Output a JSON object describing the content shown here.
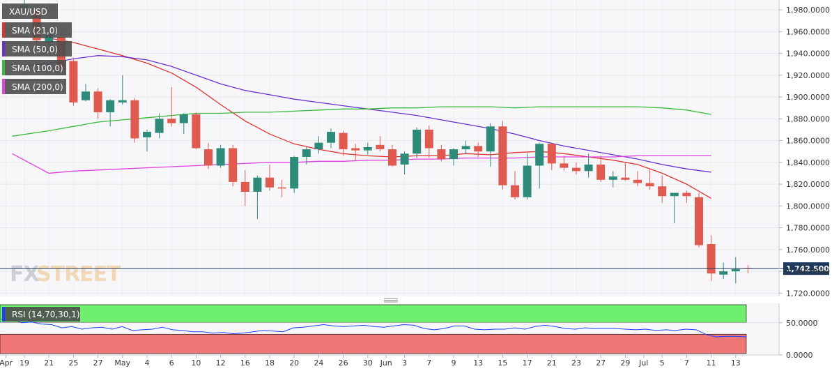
{
  "chart_data": [
    {
      "type": "candlestick",
      "symbol": "XAU/USD",
      "ylim": [
        1717,
        1989
      ],
      "y_ticks": [
        "1,980.0000",
        "1,960.0000",
        "1,940.0000",
        "1,920.0000",
        "1,900.0000",
        "1,880.0000",
        "1,860.0000",
        "1,840.0000",
        "1,820.0000",
        "1,800.0000",
        "1,780.0000",
        "1,760.0000",
        "1,740.0000",
        "1,720.0000"
      ],
      "y_tick_values": [
        1980,
        1960,
        1940,
        1920,
        1900,
        1880,
        1860,
        1840,
        1820,
        1800,
        1780,
        1760,
        1740,
        1720
      ],
      "x_ticks": [
        "Apr",
        "19",
        "21",
        "25",
        "27",
        "May",
        "4",
        "6",
        "10",
        "12",
        "16",
        "18",
        "20",
        "24",
        "26",
        "30",
        "Jun",
        "3",
        "7",
        "9",
        "13",
        "15",
        "17",
        "21",
        "23",
        "27",
        "29",
        "Jul",
        "5",
        "7",
        "11",
        "13"
      ],
      "x_tick_bars": [
        -1.5,
        0,
        2,
        4,
        6,
        8,
        10,
        12,
        14,
        16,
        18,
        20,
        22,
        24,
        26,
        28,
        29.5,
        31,
        33,
        35,
        37,
        39,
        41,
        43,
        45,
        47,
        49,
        50.5,
        52,
        54,
        56,
        58
      ],
      "last_price": "1,742.5000",
      "last_price_value": 1742.5,
      "colors": {
        "up": "#2e8b7a",
        "down": "#e05a4f",
        "sma21": "#e03131",
        "sma50": "#6a2fd1",
        "sma100": "#3cb93c",
        "sma200": "#e040e0",
        "price_line": "#1f3a5f"
      },
      "candles": [
        {
          "o": 1982,
          "h": 1990,
          "l": 1976,
          "c": 1984
        },
        {
          "o": 1979,
          "h": 1981,
          "l": 1948,
          "c": 1952
        },
        {
          "o": 1950,
          "h": 1957,
          "l": 1940,
          "c": 1957
        },
        {
          "o": 1955,
          "h": 1958,
          "l": 1920,
          "c": 1925
        },
        {
          "o": 1933,
          "h": 1936,
          "l": 1892,
          "c": 1895
        },
        {
          "o": 1897,
          "h": 1912,
          "l": 1896,
          "c": 1905
        },
        {
          "o": 1905,
          "h": 1908,
          "l": 1880,
          "c": 1886
        },
        {
          "o": 1886,
          "h": 1898,
          "l": 1873,
          "c": 1897
        },
        {
          "o": 1895,
          "h": 1920,
          "l": 1893,
          "c": 1897
        },
        {
          "o": 1897,
          "h": 1899,
          "l": 1858,
          "c": 1862
        },
        {
          "o": 1863,
          "h": 1870,
          "l": 1850,
          "c": 1868
        },
        {
          "o": 1867,
          "h": 1885,
          "l": 1862,
          "c": 1880
        },
        {
          "o": 1880,
          "h": 1909,
          "l": 1873,
          "c": 1876
        },
        {
          "o": 1876,
          "h": 1885,
          "l": 1866,
          "c": 1884
        },
        {
          "o": 1884,
          "h": 1886,
          "l": 1852,
          "c": 1853
        },
        {
          "o": 1852,
          "h": 1858,
          "l": 1834,
          "c": 1837
        },
        {
          "o": 1837,
          "h": 1856,
          "l": 1835,
          "c": 1853
        },
        {
          "o": 1853,
          "h": 1856,
          "l": 1818,
          "c": 1822
        },
        {
          "o": 1822,
          "h": 1833,
          "l": 1800,
          "c": 1813
        },
        {
          "o": 1813,
          "h": 1828,
          "l": 1788,
          "c": 1826
        },
        {
          "o": 1826,
          "h": 1838,
          "l": 1814,
          "c": 1817
        },
        {
          "o": 1817,
          "h": 1824,
          "l": 1808,
          "c": 1816
        },
        {
          "o": 1816,
          "h": 1846,
          "l": 1812,
          "c": 1845
        },
        {
          "o": 1845,
          "h": 1854,
          "l": 1838,
          "c": 1852
        },
        {
          "o": 1852,
          "h": 1864,
          "l": 1848,
          "c": 1858
        },
        {
          "o": 1858,
          "h": 1871,
          "l": 1853,
          "c": 1868
        },
        {
          "o": 1867,
          "h": 1869,
          "l": 1846,
          "c": 1852
        },
        {
          "o": 1853,
          "h": 1857,
          "l": 1842,
          "c": 1851
        },
        {
          "o": 1851,
          "h": 1858,
          "l": 1847,
          "c": 1854
        },
        {
          "o": 1856,
          "h": 1864,
          "l": 1850,
          "c": 1852
        },
        {
          "o": 1852,
          "h": 1856,
          "l": 1836,
          "c": 1837
        },
        {
          "o": 1838,
          "h": 1850,
          "l": 1829,
          "c": 1848
        },
        {
          "o": 1848,
          "h": 1872,
          "l": 1844,
          "c": 1870
        },
        {
          "o": 1870,
          "h": 1874,
          "l": 1844,
          "c": 1853
        },
        {
          "o": 1852,
          "h": 1856,
          "l": 1841,
          "c": 1843
        },
        {
          "o": 1843,
          "h": 1853,
          "l": 1837,
          "c": 1852
        },
        {
          "o": 1852,
          "h": 1860,
          "l": 1848,
          "c": 1855
        },
        {
          "o": 1855,
          "h": 1858,
          "l": 1845,
          "c": 1850
        },
        {
          "o": 1850,
          "h": 1876,
          "l": 1836,
          "c": 1873
        },
        {
          "o": 1873,
          "h": 1878,
          "l": 1815,
          "c": 1819
        },
        {
          "o": 1819,
          "h": 1832,
          "l": 1806,
          "c": 1808
        },
        {
          "o": 1808,
          "h": 1848,
          "l": 1806,
          "c": 1837
        },
        {
          "o": 1837,
          "h": 1858,
          "l": 1816,
          "c": 1857
        },
        {
          "o": 1857,
          "h": 1858,
          "l": 1833,
          "c": 1839
        },
        {
          "o": 1839,
          "h": 1846,
          "l": 1832,
          "c": 1835
        },
        {
          "o": 1835,
          "h": 1840,
          "l": 1829,
          "c": 1832
        },
        {
          "o": 1832,
          "h": 1848,
          "l": 1826,
          "c": 1838
        },
        {
          "o": 1838,
          "h": 1846,
          "l": 1822,
          "c": 1824
        },
        {
          "o": 1824,
          "h": 1832,
          "l": 1817,
          "c": 1827
        },
        {
          "o": 1826,
          "h": 1840,
          "l": 1823,
          "c": 1824
        },
        {
          "o": 1824,
          "h": 1832,
          "l": 1818,
          "c": 1821
        },
        {
          "o": 1821,
          "h": 1834,
          "l": 1815,
          "c": 1818
        },
        {
          "o": 1818,
          "h": 1828,
          "l": 1803,
          "c": 1809
        },
        {
          "o": 1809,
          "h": 1812,
          "l": 1784,
          "c": 1812
        },
        {
          "o": 1812,
          "h": 1814,
          "l": 1803,
          "c": 1809
        },
        {
          "o": 1808,
          "h": 1812,
          "l": 1762,
          "c": 1764
        },
        {
          "o": 1765,
          "h": 1773,
          "l": 1731,
          "c": 1738
        },
        {
          "o": 1737,
          "h": 1748,
          "l": 1733,
          "c": 1740
        },
        {
          "o": 1740,
          "h": 1753,
          "l": 1729,
          "c": 1742
        },
        {
          "o": 1743,
          "h": 1746,
          "l": 1738,
          "c": 1742.5
        }
      ],
      "series": [
        {
          "name": "SMA (21,0)",
          "points": [
            [
              -1,
              1956
            ],
            [
              2,
              1954
            ],
            [
              4,
              1950
            ],
            [
              6,
              1944
            ],
            [
              8,
              1938
            ],
            [
              10,
              1931
            ],
            [
              12,
              1922
            ],
            [
              14,
              1909
            ],
            [
              16,
              1893
            ],
            [
              18,
              1878
            ],
            [
              20,
              1866
            ],
            [
              22,
              1857
            ],
            [
              24,
              1852
            ],
            [
              26,
              1848
            ],
            [
              28,
              1846
            ],
            [
              30,
              1845
            ],
            [
              32,
              1846
            ],
            [
              34,
              1846
            ],
            [
              36,
              1848
            ],
            [
              38,
              1847
            ],
            [
              40,
              1849
            ],
            [
              42,
              1850
            ],
            [
              44,
              1848
            ],
            [
              46,
              1845
            ],
            [
              48,
              1842
            ],
            [
              50,
              1838
            ],
            [
              52,
              1830
            ],
            [
              54,
              1820
            ],
            [
              56,
              1807
            ]
          ]
        },
        {
          "name": "SMA (50,0)",
          "points": [
            [
              -1,
              1927
            ],
            [
              2,
              1931
            ],
            [
              4,
              1935
            ],
            [
              6,
              1938
            ],
            [
              8,
              1937
            ],
            [
              10,
              1934
            ],
            [
              12,
              1928
            ],
            [
              14,
              1920
            ],
            [
              16,
              1912
            ],
            [
              18,
              1906
            ],
            [
              20,
              1902
            ],
            [
              22,
              1898
            ],
            [
              24,
              1895
            ],
            [
              26,
              1892
            ],
            [
              28,
              1889
            ],
            [
              30,
              1886
            ],
            [
              32,
              1883
            ],
            [
              34,
              1879
            ],
            [
              36,
              1875
            ],
            [
              38,
              1871
            ],
            [
              40,
              1866
            ],
            [
              42,
              1860
            ],
            [
              44,
              1855
            ],
            [
              46,
              1851
            ],
            [
              48,
              1847
            ],
            [
              50,
              1843
            ],
            [
              52,
              1838
            ],
            [
              54,
              1834
            ],
            [
              56,
              1831
            ]
          ]
        },
        {
          "name": "SMA (100,0)",
          "points": [
            [
              -1,
              1864
            ],
            [
              2,
              1869
            ],
            [
              4,
              1873
            ],
            [
              6,
              1877
            ],
            [
              8,
              1879
            ],
            [
              10,
              1881
            ],
            [
              12,
              1883
            ],
            [
              14,
              1885
            ],
            [
              16,
              1885
            ],
            [
              18,
              1886
            ],
            [
              20,
              1886
            ],
            [
              22,
              1887
            ],
            [
              24,
              1888
            ],
            [
              26,
              1889
            ],
            [
              28,
              1889
            ],
            [
              30,
              1890
            ],
            [
              32,
              1890
            ],
            [
              34,
              1891
            ],
            [
              36,
              1891
            ],
            [
              38,
              1891
            ],
            [
              40,
              1890
            ],
            [
              42,
              1891
            ],
            [
              44,
              1891
            ],
            [
              46,
              1891
            ],
            [
              48,
              1891
            ],
            [
              50,
              1891
            ],
            [
              52,
              1890
            ],
            [
              54,
              1888
            ],
            [
              56,
              1884
            ]
          ]
        },
        {
          "name": "SMA (200,0)",
          "points": [
            [
              -1,
              1848
            ],
            [
              2,
              1830
            ],
            [
              4,
              1832
            ],
            [
              6,
              1833
            ],
            [
              8,
              1834
            ],
            [
              10,
              1835
            ],
            [
              12,
              1836
            ],
            [
              14,
              1837
            ],
            [
              16,
              1838
            ],
            [
              18,
              1839
            ],
            [
              20,
              1840
            ],
            [
              22,
              1840
            ],
            [
              24,
              1841
            ],
            [
              26,
              1841
            ],
            [
              28,
              1842
            ],
            [
              30,
              1842
            ],
            [
              32,
              1843
            ],
            [
              34,
              1843
            ],
            [
              36,
              1844
            ],
            [
              38,
              1844
            ],
            [
              40,
              1844
            ],
            [
              42,
              1845
            ],
            [
              44,
              1845
            ],
            [
              46,
              1845
            ],
            [
              48,
              1845
            ],
            [
              50,
              1846
            ],
            [
              52,
              1846
            ],
            [
              54,
              1846
            ],
            [
              56,
              1846
            ]
          ]
        }
      ]
    },
    {
      "type": "line",
      "name": "RSI (14,70,30,1)",
      "ylim": [
        0,
        80
      ],
      "y_ticks": [
        "50.0000",
        "0.0000"
      ],
      "y_tick_values": [
        50,
        0
      ],
      "overbought": 70,
      "oversold": 30,
      "values": [
        55,
        56,
        50,
        51,
        48,
        47,
        42,
        44,
        40,
        42,
        43,
        40,
        44,
        38,
        39,
        40,
        43,
        39,
        38,
        36,
        36,
        34,
        35,
        33,
        34,
        36,
        38,
        37,
        36,
        42,
        43,
        45,
        47,
        45,
        44,
        45,
        46,
        44,
        43,
        45,
        47,
        46,
        41,
        39,
        41,
        45,
        45,
        40,
        39,
        40,
        40,
        42,
        40,
        44,
        46,
        44,
        41,
        40,
        42,
        41,
        41,
        41,
        40,
        39,
        40,
        38,
        39,
        38,
        40,
        39,
        32,
        28,
        29,
        29,
        28
      ]
    }
  ]
}
